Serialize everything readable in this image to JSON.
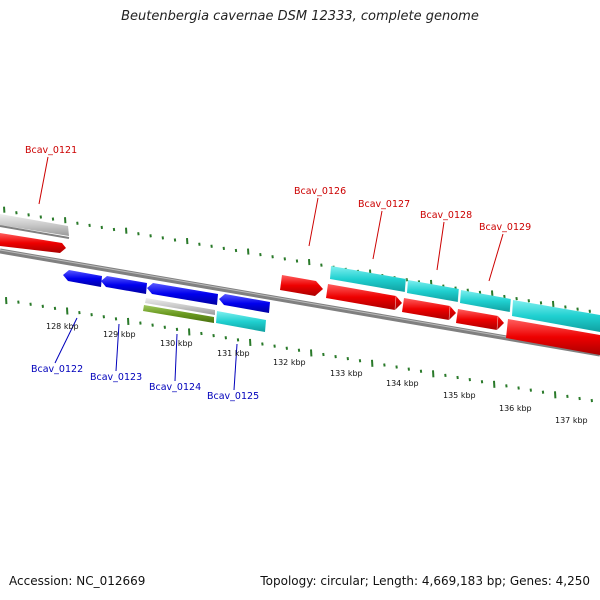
{
  "title": "Beutenbergia cavernae DSM 12333, complete genome",
  "footer": {
    "accession": "Accession: NC_012669",
    "summary": "Topology: circular; Length: 4,669,183 bp; Genes: 4,250"
  },
  "colors": {
    "forward_cds": "#ff0000",
    "reverse_cds": "#0000ee",
    "forward_feature": "#20d0d0",
    "reverse_feature": "#20d0d0",
    "grey_feature": "#c8c8c8",
    "olive_feature": "#6a9a20",
    "backbone": "#808080",
    "tick": "#2a7a2a",
    "forward_label": "#cc0000",
    "reverse_label": "#0000bb"
  },
  "ticks": [
    "128 kbp",
    "129 kbp",
    "130 kbp",
    "131 kbp",
    "132 kbp",
    "133 kbp",
    "134 kbp",
    "135 kbp",
    "136 kbp",
    "137 kbp"
  ],
  "forward_genes": [
    "Bcav_0121",
    "Bcav_0126",
    "Bcav_0127",
    "Bcav_0128",
    "Bcav_0129"
  ],
  "reverse_genes": [
    "Bcav_0122",
    "Bcav_0123",
    "Bcav_0124",
    "Bcav_0125"
  ]
}
